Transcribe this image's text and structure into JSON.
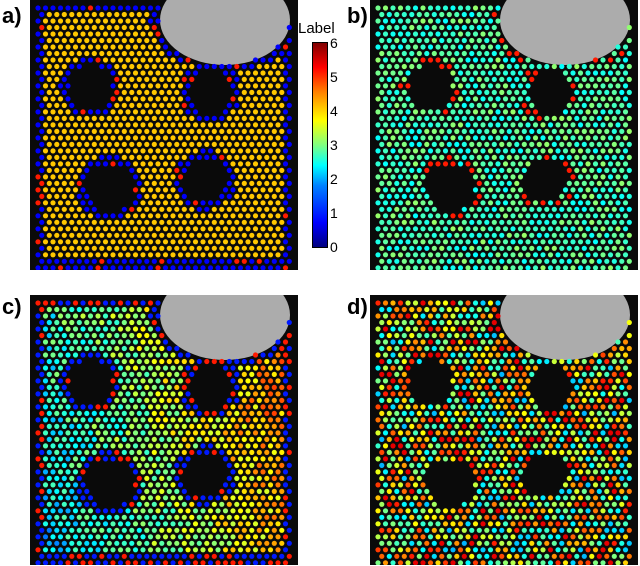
{
  "panels": [
    {
      "label": "a)",
      "scheme": "a"
    },
    {
      "label": "b)",
      "scheme": "b"
    },
    {
      "label": "c)",
      "scheme": "c"
    },
    {
      "label": "d)",
      "scheme": "d"
    }
  ],
  "colorbar": {
    "title": "Label",
    "ticks": [
      "6",
      "5",
      "4",
      "3",
      "2",
      "1",
      "0"
    ],
    "min": 0,
    "max": 6
  },
  "colors": {
    "background": "#0a0a0a",
    "cloud": "#c9c9c9"
  }
}
